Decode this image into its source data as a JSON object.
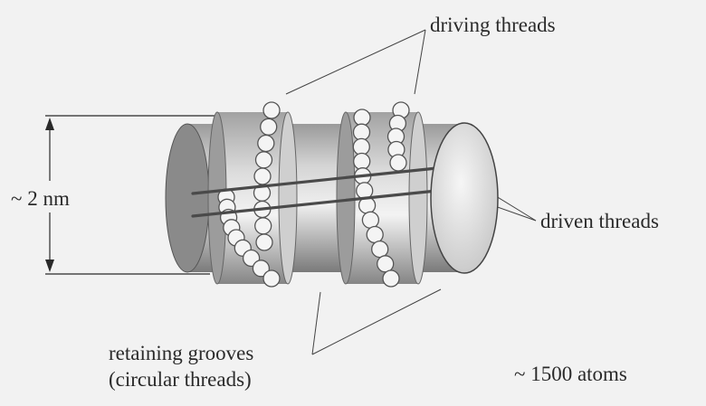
{
  "labels": {
    "driving_threads": "driving threads",
    "diameter": "~ 2 nm",
    "driven_threads": "driven threads",
    "retaining_line1": "retaining grooves",
    "retaining_line2": "(circular threads)",
    "atom_count": "~ 1500 atoms"
  },
  "colors": {
    "background": "#f2f2f2",
    "ink": "#2a2a2a",
    "cylinder_dark": "#8e8e8e",
    "cylinder_light": "#ececec",
    "bead_fill": "#f4f4f4",
    "bead_stroke": "#555555"
  }
}
